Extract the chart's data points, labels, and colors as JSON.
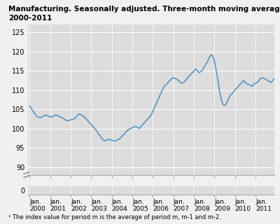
{
  "title_line1": "Manufacturing. Seasonally adjusted. Three-month moving average¹",
  "title_line2": "2000-2011",
  "footnote": "¹ The index value for period m is the average of period m, m-1 and m-2.",
  "line_color": "#4a90c4",
  "fig_bg_color": "#f0f0f0",
  "plot_bg_color": "#dcdcdc",
  "grid_color": "#ffffff",
  "yticks": [
    90,
    95,
    100,
    105,
    110,
    115,
    120,
    125
  ],
  "ytick_bottom": 0,
  "ylim": [
    88,
    127
  ],
  "values": [
    105.8,
    105.2,
    104.5,
    103.8,
    103.2,
    103.0,
    102.8,
    103.0,
    103.2,
    103.5,
    103.4,
    103.2,
    103.1,
    103.0,
    103.3,
    103.5,
    103.4,
    103.2,
    103.0,
    102.8,
    102.5,
    102.2,
    102.0,
    102.1,
    102.3,
    102.4,
    102.5,
    103.0,
    103.5,
    103.8,
    103.6,
    103.3,
    103.0,
    102.5,
    102.0,
    101.5,
    101.0,
    100.5,
    100.0,
    99.5,
    98.8,
    98.2,
    97.5,
    97.0,
    96.8,
    97.0,
    97.2,
    97.0,
    97.0,
    96.8,
    96.8,
    97.0,
    97.2,
    97.5,
    98.0,
    98.5,
    99.0,
    99.5,
    99.8,
    100.0,
    100.2,
    100.5,
    100.5,
    100.3,
    100.0,
    100.5,
    101.0,
    101.5,
    102.0,
    102.5,
    103.0,
    103.5,
    104.5,
    105.5,
    106.5,
    107.5,
    108.5,
    109.5,
    110.5,
    111.2,
    111.5,
    112.0,
    112.5,
    113.0,
    113.2,
    113.0,
    112.8,
    112.5,
    112.0,
    111.8,
    112.0,
    112.5,
    113.0,
    113.5,
    114.0,
    114.5,
    115.0,
    115.5,
    115.0,
    114.5,
    114.8,
    115.2,
    116.0,
    116.8,
    117.5,
    118.5,
    119.2,
    118.8,
    117.5,
    115.0,
    112.5,
    109.5,
    107.5,
    106.2,
    106.0,
    106.5,
    107.5,
    108.5,
    109.0,
    109.5,
    110.0,
    110.5,
    111.0,
    111.5,
    112.0,
    112.5,
    112.0,
    111.5,
    111.5,
    111.2,
    111.0,
    111.5,
    111.8,
    112.0,
    112.5,
    113.0,
    113.2,
    113.0,
    112.8,
    112.5,
    112.2,
    112.0,
    112.5,
    113.0
  ]
}
